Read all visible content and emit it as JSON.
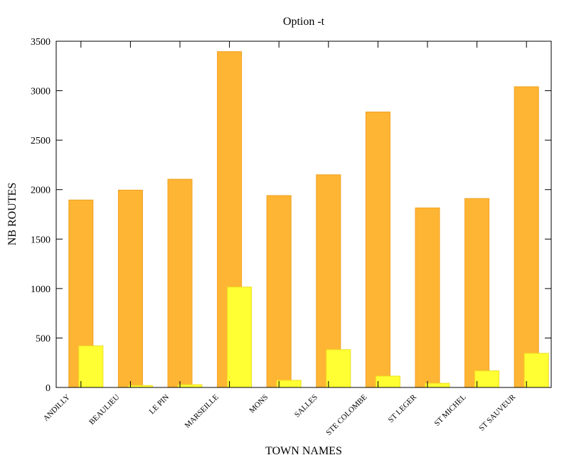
{
  "chart_data": {
    "type": "bar",
    "title": "Option -t",
    "xlabel": "TOWN NAMES",
    "ylabel": "NB ROUTES",
    "ylim": [
      0,
      3500
    ],
    "yticks": [
      0,
      500,
      1000,
      1500,
      2000,
      2500,
      3000,
      3500
    ],
    "grid": false,
    "categories": [
      "ANDILLY",
      "BEAULIEU",
      "LE PIN",
      "MARSEILLE",
      "MONS",
      "SALLES",
      "STE COLOMBE",
      "ST LEGER",
      "ST MICHEL",
      "ST SAUVEUR"
    ],
    "series": [
      {
        "color": "#ffb534",
        "stroke": "#f0a020",
        "values": [
          1895,
          1995,
          2105,
          3395,
          1940,
          2150,
          2785,
          1815,
          1910,
          3040
        ]
      },
      {
        "color": "#ffff33",
        "stroke": "#eedd22",
        "values": [
          420,
          20,
          28,
          1015,
          72,
          382,
          115,
          42,
          168,
          345
        ]
      }
    ]
  }
}
